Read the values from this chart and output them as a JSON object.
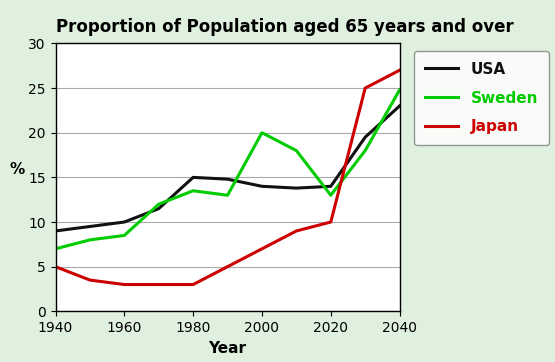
{
  "title": "Proportion of Population aged 65 years and over",
  "xlabel": "Year",
  "ylabel": "%",
  "xlim": [
    1940,
    2040
  ],
  "ylim": [
    0,
    30
  ],
  "xticks": [
    1940,
    1960,
    1980,
    2000,
    2020,
    2040
  ],
  "yticks": [
    0,
    5,
    10,
    15,
    20,
    25,
    30
  ],
  "background_color": "#dff0df",
  "plot_bg": "#ffffff",
  "series": [
    {
      "name": "USA",
      "color": "#111111",
      "linewidth": 2.2,
      "x": [
        1940,
        1950,
        1960,
        1970,
        1980,
        1990,
        2000,
        2010,
        2020,
        2030,
        2040
      ],
      "y": [
        9.0,
        9.5,
        10.0,
        11.5,
        15.0,
        14.8,
        14.0,
        13.8,
        14.0,
        19.5,
        23.0
      ]
    },
    {
      "name": "Sweden",
      "color": "#00cc00",
      "linewidth": 2.2,
      "x": [
        1940,
        1950,
        1960,
        1970,
        1980,
        1990,
        2000,
        2010,
        2020,
        2030,
        2040
      ],
      "y": [
        7.0,
        8.0,
        8.5,
        12.0,
        13.5,
        13.0,
        20.0,
        18.0,
        13.0,
        18.0,
        24.8
      ]
    },
    {
      "name": "Japan",
      "color": "#cc0000",
      "linewidth": 2.2,
      "x": [
        1940,
        1950,
        1960,
        1970,
        1980,
        1990,
        2000,
        2010,
        2020,
        2030,
        2040
      ],
      "y": [
        5.0,
        3.5,
        3.0,
        3.0,
        3.0,
        5.0,
        7.0,
        9.0,
        10.0,
        25.0,
        27.0
      ]
    }
  ],
  "legend_colors": [
    "#111111",
    "#00cc00",
    "#cc0000"
  ],
  "legend_names": [
    "USA",
    "Sweden",
    "Japan"
  ],
  "legend_fontsize": 11,
  "title_fontsize": 12,
  "axis_fontsize": 10
}
